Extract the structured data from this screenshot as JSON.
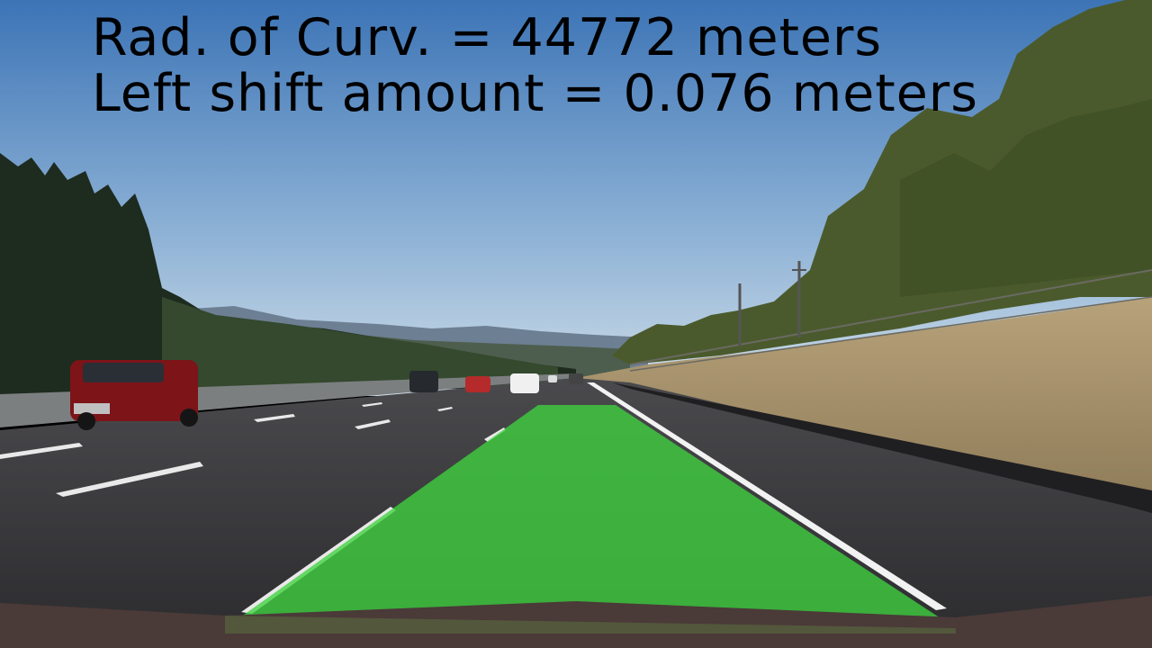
{
  "overlay": {
    "radius_text": "Rad. of Curv. = 44772 meters",
    "shift_text": "Left shift amount = 0.076 meters"
  },
  "measurements": {
    "radius_of_curvature_m": 44772,
    "left_shift_m": 0.076
  },
  "colors": {
    "lane_fill": "#3fd23f",
    "text": "#000000",
    "sky_top": "#3d77b8",
    "sky_bottom": "#c9dbe8"
  }
}
